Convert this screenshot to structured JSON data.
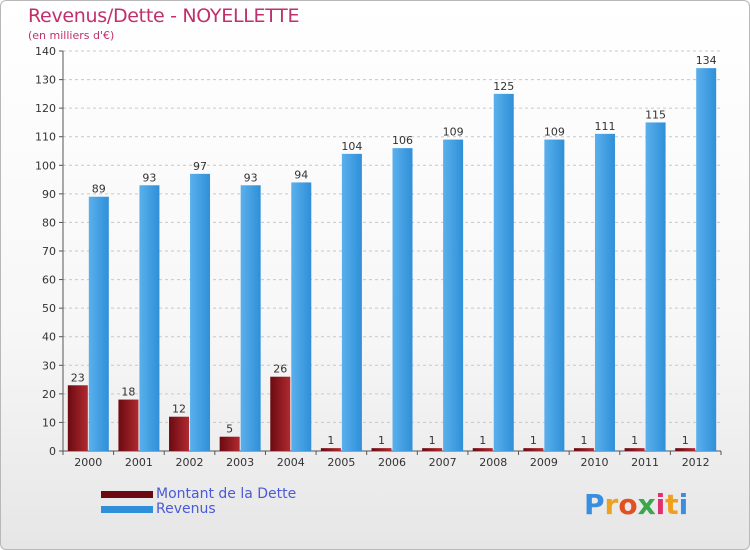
{
  "title": "Revenus/Dette - NOYELLETTE",
  "subtitle": "(en milliers d'€)",
  "colors": {
    "dette": "#6b0a12",
    "dette_light": "#b02a30",
    "revenus": "#2f8fd8",
    "revenus_light": "#5ab0ec",
    "title": "#c0306c",
    "legend_text": "#4a5ad8"
  },
  "legend": {
    "dette_label": "Montant de la Dette",
    "revenus_label": "Revenus"
  },
  "logo": {
    "text": "Proxiti"
  },
  "chart_data": {
    "type": "bar",
    "title": "Revenus/Dette - NOYELLETTE",
    "ylabel": "(en milliers d'€)",
    "xlabel": "",
    "ylim": [
      0,
      140
    ],
    "yticks": [
      0,
      10,
      20,
      30,
      40,
      50,
      60,
      70,
      80,
      90,
      100,
      110,
      120,
      130,
      140
    ],
    "grid": true,
    "legend_position": "bottom-left",
    "categories": [
      "2000",
      "2001",
      "2002",
      "2003",
      "2004",
      "2005",
      "2006",
      "2007",
      "2008",
      "2009",
      "2010",
      "2011",
      "2012"
    ],
    "series": [
      {
        "name": "Montant de la Dette",
        "values": [
          23,
          18,
          12,
          5,
          26,
          1,
          1,
          1,
          1,
          1,
          1,
          1,
          1
        ]
      },
      {
        "name": "Revenus",
        "values": [
          89,
          93,
          97,
          93,
          94,
          104,
          106,
          109,
          125,
          109,
          111,
          115,
          134
        ]
      }
    ]
  }
}
